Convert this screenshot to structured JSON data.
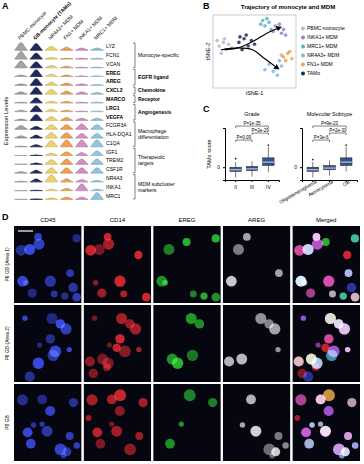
{
  "chart_data": [
    {
      "panel": "A",
      "type": "violin",
      "ylabel": "Expression Levels",
      "categories": [
        "PBMC-monocyte",
        "GB-monocyte (TAMo)",
        "NR4A3+ MDM",
        "FN1+ MDM",
        "INKA1+ MDM",
        "MRC1+ MDM"
      ],
      "colors": [
        "#a3a3a3",
        "#1f2a5c",
        "#f2d36b",
        "#f0a050",
        "#d58fc0",
        "#8fc6e3"
      ],
      "genes": [
        "LYZ",
        "FCN1",
        "VCAN",
        "EREG",
        "AREG",
        "CXCL2",
        "MARCO",
        "LRG1",
        "VEGFA",
        "FCGR3A",
        "HLA-DQA1",
        "C1QA",
        "IGF1",
        "TREM2",
        "CSF1R",
        "NR4A3",
        "INKA1",
        "MRC1"
      ],
      "groups": [
        {
          "label": "Monocyte-specific",
          "size": 3
        },
        {
          "label": "EGFR ligand",
          "size": 2
        },
        {
          "label": "Chemokine",
          "size": 1
        },
        {
          "label": "Receptor",
          "size": 1
        },
        {
          "label": "Angiogenesis",
          "size": 2
        },
        {
          "label": "Macrophage differentiation",
          "size": 3
        },
        {
          "label": "Therapeutic targets",
          "size": 3
        },
        {
          "label": "MDM subcluster markers",
          "size": 3
        }
      ],
      "values": [
        [
          1.0,
          0.9,
          0.5,
          0.4,
          0.3,
          0.3
        ],
        [
          1.0,
          0.8,
          0.2,
          0.1,
          0.1,
          0.1
        ],
        [
          0.9,
          0.8,
          0.3,
          0.2,
          0.1,
          0.1
        ],
        [
          0.2,
          0.9,
          0.3,
          0.2,
          0.1,
          0.1
        ],
        [
          0.2,
          0.9,
          0.4,
          0.3,
          0.2,
          0.1
        ],
        [
          0.3,
          0.9,
          0.6,
          0.4,
          0.3,
          0.2
        ],
        [
          0.1,
          0.7,
          0.2,
          0.2,
          0.1,
          0.1
        ],
        [
          0.2,
          0.8,
          0.3,
          0.2,
          0.1,
          0.1
        ],
        [
          0.2,
          0.8,
          0.5,
          0.4,
          0.3,
          0.3
        ],
        [
          0.5,
          0.4,
          0.6,
          0.6,
          0.7,
          0.6
        ],
        [
          0.3,
          0.4,
          0.7,
          0.7,
          0.6,
          0.6
        ],
        [
          0.1,
          0.3,
          0.8,
          0.9,
          0.9,
          0.9
        ],
        [
          0.0,
          0.1,
          0.3,
          0.5,
          0.4,
          0.6
        ],
        [
          0.0,
          0.2,
          0.6,
          0.7,
          0.7,
          0.7
        ],
        [
          0.2,
          0.4,
          0.7,
          0.7,
          0.7,
          0.7
        ],
        [
          0.1,
          0.4,
          0.9,
          0.4,
          0.3,
          0.2
        ],
        [
          0.0,
          0.1,
          0.2,
          0.3,
          0.9,
          0.2
        ],
        [
          0.0,
          0.1,
          0.2,
          0.3,
          0.3,
          0.9
        ]
      ],
      "ylim": [
        0,
        1
      ],
      "tick_labels": false
    },
    {
      "panel": "B",
      "type": "scatter",
      "title": "Trajectory of monocyte and MDM",
      "xlabel": "tSNE-1",
      "ylabel": "tSNE-2",
      "xlim": [
        -40,
        40
      ],
      "ylim": [
        -40,
        40
      ],
      "tick_labels": false,
      "series": [
        {
          "name": "PBMC-monocyte",
          "color": "#b0bcc8",
          "x": [
            -34,
            -30,
            -27,
            -32,
            -25,
            -29,
            -22,
            -36
          ],
          "y": [
            6,
            10,
            2,
            -2,
            8,
            14,
            4,
            12
          ]
        },
        {
          "name": "INKA1+ MDM",
          "color": "#9b7fc4",
          "x": [
            18,
            22,
            26,
            20,
            28,
            24,
            30
          ],
          "y": [
            22,
            26,
            20,
            28,
            24,
            30,
            18
          ]
        },
        {
          "name": "MRC1+ MDM",
          "color": "#5ab0c8",
          "x": [
            10,
            14,
            8,
            16,
            12,
            6
          ],
          "y": [
            28,
            32,
            34,
            24,
            36,
            30
          ]
        },
        {
          "name": "NR4A3+ MDM",
          "color": "#7fb6e8",
          "x": [
            14,
            20,
            24,
            18,
            26,
            10,
            22
          ],
          "y": [
            -14,
            -18,
            -10,
            -22,
            -16,
            -20,
            -26
          ]
        },
        {
          "name": "FN1+ MDM",
          "color": "#f0a050",
          "x": [
            28,
            32,
            30,
            34,
            26,
            36
          ],
          "y": [
            -6,
            -2,
            -10,
            0,
            -4,
            -8
          ]
        },
        {
          "name": "TAMo",
          "color": "#1f2a5c",
          "x": [
            -15,
            -10,
            -6,
            -12,
            -3,
            -8,
            0,
            -14
          ],
          "y": [
            10,
            14,
            6,
            2,
            12,
            18,
            8,
            16
          ]
        }
      ],
      "arrows": [
        {
          "x": [
            -32,
            -16,
            0,
            12,
            24
          ],
          "y": [
            2,
            4,
            12,
            20,
            26
          ]
        },
        {
          "x": [
            -32,
            -16,
            -2,
            10,
            22
          ],
          "y": [
            2,
            4,
            2,
            -8,
            -18
          ]
        }
      ]
    },
    {
      "panel": "C",
      "type": "box",
      "title": "Grade",
      "ylabel": "TAMo score",
      "categories": [
        "II",
        "III",
        "IV"
      ],
      "color": "#34508a",
      "ylim": [
        -1.5,
        4.6
      ],
      "yticks": [
        0
      ],
      "boxes": [
        {
          "low": -1.2,
          "q1": -0.5,
          "median": -0.3,
          "q3": 0,
          "high": 0.6,
          "outliers": [
            1.0
          ]
        },
        {
          "low": -1.1,
          "q1": -0.4,
          "median": -0.2,
          "q3": 0.1,
          "high": 0.7,
          "outliers": []
        },
        {
          "low": -0.6,
          "q1": 0.2,
          "median": 0.6,
          "q3": 1.1,
          "high": 2.4,
          "outliers": [
            2.6
          ]
        }
      ],
      "comparisons": [
        {
          "pair": [
            0,
            1
          ],
          "label": "P=0.09"
        },
        {
          "pair": [
            1,
            2
          ],
          "label": "P=2e-29"
        },
        {
          "pair": [
            0,
            2
          ],
          "label": "P=1e-35"
        }
      ]
    },
    {
      "type": "box",
      "title": "Molecular Subtype",
      "categories": [
        "Oligodendroglioma",
        "Astrocytoma",
        "GB"
      ],
      "color": "#34508a",
      "ylim": [
        -1.5,
        4.6
      ],
      "yticks": [
        0
      ],
      "boxes": [
        {
          "low": -1.2,
          "q1": -0.5,
          "median": -0.3,
          "q3": 0,
          "high": 0.6,
          "outliers": [
            0.9
          ]
        },
        {
          "low": -1.0,
          "q1": -0.3,
          "median": -0.1,
          "q3": 0.2,
          "high": 0.8,
          "outliers": []
        },
        {
          "low": -0.5,
          "q1": 0.2,
          "median": 0.6,
          "q3": 1.1,
          "high": 2.4,
          "outliers": [
            2.6
          ]
        }
      ],
      "comparisons": [
        {
          "pair": [
            0,
            1
          ],
          "label": "P=3e-6"
        },
        {
          "pair": [
            1,
            2
          ],
          "label": "P=2e-30"
        },
        {
          "pair": [
            0,
            2
          ],
          "label": "P=9e-23"
        }
      ]
    },
    {
      "panel": "D",
      "type": "image_grid",
      "channels": [
        {
          "name": "CD45",
          "color": "#3545e0"
        },
        {
          "name": "CD14",
          "color": "#e02424"
        },
        {
          "name": "EREG",
          "color": "#28c428"
        },
        {
          "name": "AREG",
          "color": "#e8e8e8"
        }
      ],
      "merged_label": "Merged",
      "rows": [
        "P6 GB (Area 1)",
        "P6 GB (Area 2)",
        "P8 GB"
      ]
    }
  ]
}
